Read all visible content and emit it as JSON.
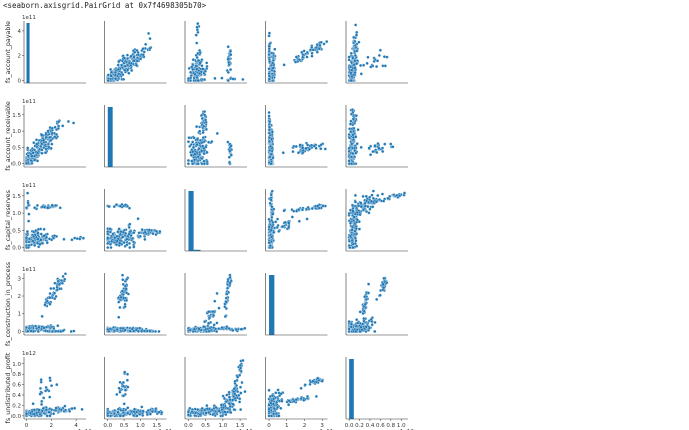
{
  "repr_text": "<seaborn.axisgrid.PairGrid at 0x7f4698305b70>",
  "colors": {
    "marker": "#1f77b4",
    "edge": "#ffffff",
    "axis": "#333333"
  },
  "chart_data": {
    "type": "scatter",
    "kind": "pairplot",
    "diag_kind": "hist",
    "grid": false,
    "variables": [
      {
        "name": "fs_account_payable",
        "lim": [
          -0.2,
          4.8
        ],
        "ticks": [
          0,
          2,
          4
        ],
        "offset": "1e11"
      },
      {
        "name": "fs_account_receivable",
        "lim": [
          -0.1,
          1.8
        ],
        "ticks": [
          0.0,
          0.5,
          1.0,
          1.5
        ],
        "offset": "1e11"
      },
      {
        "name": "fs_capital_reserves",
        "lim": [
          -0.1,
          1.7
        ],
        "ticks": [
          0.0,
          0.5,
          1.0,
          1.5
        ],
        "offset": "1e11"
      },
      {
        "name": "fs_construction_in_process",
        "lim": [
          -0.2,
          3.3
        ],
        "ticks": [
          0,
          1,
          2,
          3
        ],
        "offset": "1e11"
      },
      {
        "name": "fs_undistributed_profit",
        "lim": [
          -0.06,
          1.13
        ],
        "ticks": [
          0.0,
          0.2,
          0.4,
          0.6,
          0.8,
          1.0
        ],
        "offset": "1e12"
      }
    ],
    "diagonal_histograms": [
      {
        "variable": "fs_account_payable",
        "bin_start": 0.0,
        "bin_end": 0.25,
        "relative_height": 1.0
      },
      {
        "variable": "fs_account_receivable",
        "bin_start": 0.0,
        "bin_end": 0.15,
        "relative_height": 1.0
      },
      {
        "variable": "fs_capital_reserves",
        "bin_start": 0.0,
        "bin_end": 0.15,
        "relative_height": 1.0,
        "second_bin": {
          "bin_start": 0.15,
          "bin_end": 0.35,
          "relative_height": 0.02
        }
      },
      {
        "variable": "fs_construction_in_process",
        "bin_start": 0.0,
        "bin_end": 0.3,
        "relative_height": 1.0
      },
      {
        "variable": "fs_undistributed_profit",
        "bin_start": 0.0,
        "bin_end": 0.09,
        "relative_height": 1.0
      }
    ],
    "clusters": [
      {
        "x": 0,
        "y": 1,
        "cx": 1.3,
        "cy": 0.6,
        "sx": 0.9,
        "sy": 0.35,
        "n": 150,
        "corr": 0.82
      },
      {
        "x": 0,
        "y": 1,
        "cx": 0.4,
        "cy": 0.15,
        "sx": 0.35,
        "sy": 0.12,
        "n": 60,
        "corr": 0.5
      },
      {
        "x": 0,
        "y": 2,
        "cx": 0.6,
        "cy": 0.25,
        "sx": 0.6,
        "sy": 0.12,
        "n": 120,
        "corr": 0.0
      },
      {
        "x": 0,
        "y": 2,
        "cx": 2.5,
        "cy": 0.3,
        "sx": 1.2,
        "sy": 0.04,
        "n": 25,
        "corr": 0.0
      },
      {
        "x": 0,
        "y": 2,
        "cx": 1.7,
        "cy": 1.18,
        "sx": 0.55,
        "sy": 0.03,
        "n": 25,
        "corr": 0.0
      },
      {
        "x": 0,
        "y": 2,
        "cx": 0.1,
        "cy": 1.2,
        "sx": 0.08,
        "sy": 0.15,
        "n": 10,
        "corr": 0.0
      },
      {
        "x": 0,
        "y": 3,
        "cx": 0.8,
        "cy": 0.15,
        "sx": 0.8,
        "sy": 0.08,
        "n": 110,
        "corr": 0.1
      },
      {
        "x": 0,
        "y": 3,
        "cx": 1.9,
        "cy": 0.02,
        "sx": 1.0,
        "sy": 0.02,
        "n": 40,
        "corr": 0.0
      },
      {
        "x": 0,
        "y": 3,
        "cx": 2.2,
        "cy": 2.2,
        "sx": 0.45,
        "sy": 0.5,
        "n": 50,
        "corr": 0.9
      },
      {
        "x": 0,
        "y": 4,
        "cx": 0.8,
        "cy": 0.06,
        "sx": 0.8,
        "sy": 0.04,
        "n": 130,
        "corr": 0.3
      },
      {
        "x": 0,
        "y": 4,
        "cx": 2.2,
        "cy": 0.12,
        "sx": 1.2,
        "sy": 0.03,
        "n": 40,
        "corr": 0.5
      },
      {
        "x": 0,
        "y": 4,
        "cx": 1.7,
        "cy": 0.5,
        "sx": 0.5,
        "sy": 0.15,
        "n": 20,
        "corr": 0.6
      },
      {
        "x": 1,
        "y": 2,
        "cx": 0.35,
        "cy": 0.3,
        "sx": 0.35,
        "sy": 0.15,
        "n": 150,
        "corr": 0.1
      },
      {
        "x": 1,
        "y": 2,
        "cx": 1.2,
        "cy": 0.45,
        "sx": 0.3,
        "sy": 0.04,
        "n": 40,
        "corr": 0.0
      },
      {
        "x": 1,
        "y": 2,
        "cx": 0.45,
        "cy": 1.2,
        "sx": 0.15,
        "sy": 0.03,
        "n": 20,
        "corr": 0.0
      },
      {
        "x": 1,
        "y": 3,
        "cx": 0.45,
        "cy": 0.1,
        "sx": 0.45,
        "sy": 0.06,
        "n": 160,
        "corr": 0.1
      },
      {
        "x": 1,
        "y": 3,
        "cx": 0.5,
        "cy": 2.3,
        "sx": 0.08,
        "sy": 0.5,
        "n": 45,
        "corr": 0.4
      },
      {
        "x": 1,
        "y": 3,
        "cx": 1.2,
        "cy": 0.02,
        "sx": 0.3,
        "sy": 0.02,
        "n": 25,
        "corr": 0.0
      },
      {
        "x": 1,
        "y": 4,
        "cx": 0.5,
        "cy": 0.06,
        "sx": 0.5,
        "sy": 0.04,
        "n": 150,
        "corr": 0.3
      },
      {
        "x": 1,
        "y": 4,
        "cx": 0.5,
        "cy": 0.5,
        "sx": 0.1,
        "sy": 0.15,
        "n": 25,
        "corr": 0.5
      },
      {
        "x": 1,
        "y": 4,
        "cx": 1.2,
        "cy": 0.08,
        "sx": 0.3,
        "sy": 0.03,
        "n": 20,
        "corr": 0.0
      },
      {
        "x": 2,
        "y": 3,
        "cx": 0.3,
        "cy": 0.1,
        "sx": 0.25,
        "sy": 0.07,
        "n": 140,
        "corr": 0.2
      },
      {
        "x": 2,
        "y": 3,
        "cx": 0.65,
        "cy": 0.7,
        "sx": 0.12,
        "sy": 0.5,
        "n": 35,
        "corr": 0.6
      },
      {
        "x": 2,
        "y": 3,
        "cx": 1.15,
        "cy": 2.4,
        "sx": 0.05,
        "sy": 0.6,
        "n": 40,
        "corr": 0.8
      },
      {
        "x": 2,
        "y": 3,
        "cx": 1.3,
        "cy": 0.15,
        "sx": 0.2,
        "sy": 0.05,
        "n": 25,
        "corr": 0.0
      },
      {
        "x": 2,
        "y": 4,
        "cx": 0.5,
        "cy": 0.08,
        "sx": 0.4,
        "sy": 0.05,
        "n": 140,
        "corr": 0.6
      },
      {
        "x": 2,
        "y": 4,
        "cx": 1.2,
        "cy": 0.3,
        "sx": 0.2,
        "sy": 0.15,
        "n": 60,
        "corr": 0.7
      },
      {
        "x": 2,
        "y": 4,
        "cx": 1.45,
        "cy": 0.75,
        "sx": 0.08,
        "sy": 0.2,
        "n": 35,
        "corr": 0.8
      },
      {
        "x": 3,
        "y": 4,
        "cx": 0.2,
        "cy": 0.15,
        "sx": 0.2,
        "sy": 0.15,
        "n": 150,
        "corr": 0.3
      },
      {
        "x": 3,
        "y": 4,
        "cx": 1.5,
        "cy": 0.3,
        "sx": 0.6,
        "sy": 0.05,
        "n": 40,
        "corr": 0.9
      },
      {
        "x": 3,
        "y": 4,
        "cx": 2.5,
        "cy": 0.65,
        "sx": 0.4,
        "sy": 0.05,
        "n": 25,
        "corr": 0.8
      }
    ]
  }
}
